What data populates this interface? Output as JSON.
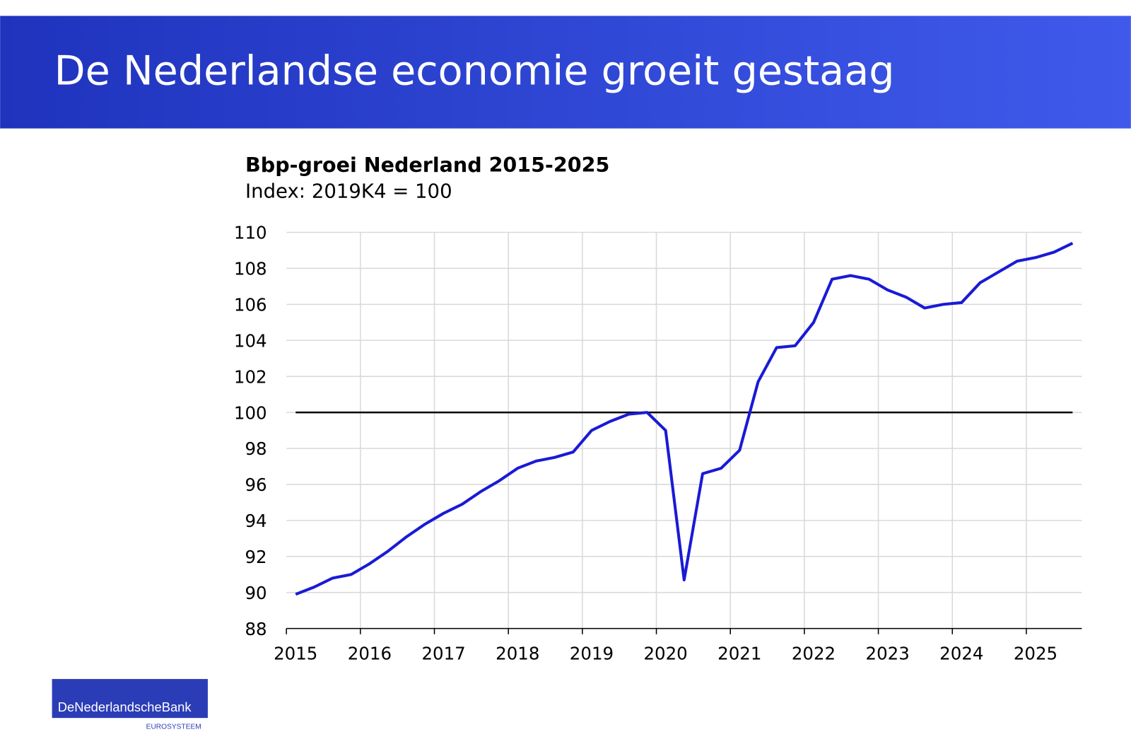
{
  "header": {
    "title": "De Nederlandse economie groeit gestaag"
  },
  "chart_data": {
    "type": "line",
    "title": "Bbp-groei Nederland 2015-2025",
    "subtitle": "Index: 2019K4 = 100",
    "categories": [
      "2015",
      null,
      null,
      null,
      "2016",
      null,
      null,
      null,
      "2017",
      null,
      null,
      null,
      "2018",
      null,
      null,
      null,
      "2019",
      null,
      null,
      null,
      "2020",
      null,
      null,
      null,
      "2021",
      null,
      null,
      null,
      "2022",
      null,
      null,
      null,
      "2023",
      null,
      null,
      null,
      "2024",
      null,
      null,
      null,
      "2025",
      null,
      null
    ],
    "series": [
      {
        "color": "#1a1ad6",
        "values": [
          89.9,
          90.3,
          90.8,
          91.0,
          91.6,
          92.3,
          93.1,
          93.8,
          94.4,
          94.9,
          95.6,
          96.2,
          96.9,
          97.3,
          97.5,
          97.8,
          99.0,
          99.5,
          99.9,
          100.0,
          99.0,
          90.7,
          96.6,
          96.9,
          97.9,
          101.7,
          103.6,
          103.7,
          105.0,
          107.4,
          107.6,
          107.4,
          106.8,
          106.4,
          105.8,
          106.0,
          106.1,
          107.2,
          107.8,
          108.4,
          108.6,
          108.9,
          109.4
        ]
      }
    ],
    "ylim": [
      88,
      110
    ],
    "yticks": [
      88,
      90,
      92,
      94,
      96,
      98,
      100,
      102,
      104,
      106,
      108,
      110
    ],
    "reference_line": 100,
    "grid": true
  },
  "logo": {
    "name": "DeNederlandscheBank",
    "sub": "EUROSYSTEEM"
  }
}
